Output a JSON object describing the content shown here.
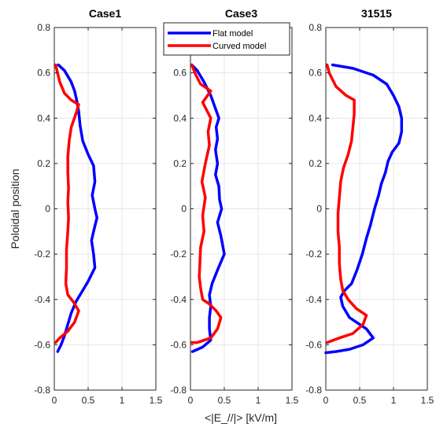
{
  "chart_data": {
    "type": "line",
    "xlabel": "<|E_//|> [kV/m]",
    "ylabel": "Poloidal position",
    "xlim": [
      0,
      1.5
    ],
    "ylim": [
      -0.8,
      0.8
    ],
    "xticks": [
      "0",
      "0.5",
      "1",
      "1.5"
    ],
    "yticks": [
      "-0.8",
      "-0.6",
      "-0.4",
      "-0.2",
      "0",
      "0.2",
      "0.4",
      "0.6",
      "0.8"
    ],
    "grid": true,
    "legend": {
      "placement": "top-center",
      "entries": [
        {
          "name": "Flat model",
          "color": "#0000ff"
        },
        {
          "name": "Curved model",
          "color": "#ff0000"
        }
      ]
    },
    "panels": [
      {
        "title": "Case1",
        "series": [
          {
            "name": "Flat model",
            "color": "#0000ff",
            "points": [
              [
                0.06,
                0.635
              ],
              [
                0.15,
                0.61
              ],
              [
                0.25,
                0.56
              ],
              [
                0.3,
                0.52
              ],
              [
                0.33,
                0.48
              ],
              [
                0.36,
                0.43
              ],
              [
                0.38,
                0.37
              ],
              [
                0.42,
                0.3
              ],
              [
                0.5,
                0.24
              ],
              [
                0.58,
                0.19
              ],
              [
                0.6,
                0.12
              ],
              [
                0.56,
                0.06
              ],
              [
                0.6,
                0.0
              ],
              [
                0.63,
                -0.04
              ],
              [
                0.58,
                -0.1
              ],
              [
                0.55,
                -0.14
              ],
              [
                0.58,
                -0.2
              ],
              [
                0.6,
                -0.26
              ],
              [
                0.5,
                -0.32
              ],
              [
                0.4,
                -0.37
              ],
              [
                0.32,
                -0.41
              ],
              [
                0.25,
                -0.46
              ],
              [
                0.2,
                -0.51
              ],
              [
                0.15,
                -0.56
              ],
              [
                0.1,
                -0.6
              ],
              [
                0.05,
                -0.63
              ]
            ]
          },
          {
            "name": "Curved model",
            "color": "#ff0000",
            "points": [
              [
                0.02,
                0.635
              ],
              [
                0.08,
                0.56
              ],
              [
                0.15,
                0.51
              ],
              [
                0.25,
                0.48
              ],
              [
                0.36,
                0.46
              ],
              [
                0.32,
                0.42
              ],
              [
                0.25,
                0.36
              ],
              [
                0.22,
                0.3
              ],
              [
                0.2,
                0.23
              ],
              [
                0.2,
                0.16
              ],
              [
                0.21,
                0.09
              ],
              [
                0.2,
                0.03
              ],
              [
                0.21,
                -0.04
              ],
              [
                0.2,
                -0.1
              ],
              [
                0.18,
                -0.18
              ],
              [
                0.18,
                -0.26
              ],
              [
                0.17,
                -0.33
              ],
              [
                0.2,
                -0.38
              ],
              [
                0.28,
                -0.41
              ],
              [
                0.36,
                -0.45
              ],
              [
                0.3,
                -0.5
              ],
              [
                0.2,
                -0.54
              ],
              [
                0.08,
                -0.57
              ],
              [
                0.02,
                -0.59
              ]
            ]
          }
        ]
      },
      {
        "title": "Case3",
        "series": [
          {
            "name": "Flat model",
            "color": "#0000ff",
            "points": [
              [
                0.02,
                0.635
              ],
              [
                0.1,
                0.61
              ],
              [
                0.2,
                0.56
              ],
              [
                0.3,
                0.5
              ],
              [
                0.36,
                0.45
              ],
              [
                0.42,
                0.4
              ],
              [
                0.38,
                0.36
              ],
              [
                0.4,
                0.31
              ],
              [
                0.37,
                0.26
              ],
              [
                0.4,
                0.2
              ],
              [
                0.37,
                0.15
              ],
              [
                0.42,
                0.1
              ],
              [
                0.43,
                0.04
              ],
              [
                0.46,
                0.0
              ],
              [
                0.4,
                -0.06
              ],
              [
                0.45,
                -0.12
              ],
              [
                0.5,
                -0.2
              ],
              [
                0.4,
                -0.27
              ],
              [
                0.32,
                -0.33
              ],
              [
                0.28,
                -0.38
              ],
              [
                0.3,
                -0.43
              ],
              [
                0.28,
                -0.48
              ],
              [
                0.28,
                -0.53
              ],
              [
                0.3,
                -0.58
              ],
              [
                0.18,
                -0.61
              ],
              [
                0.03,
                -0.63
              ]
            ]
          },
          {
            "name": "Curved model",
            "color": "#ff0000",
            "points": [
              [
                0.02,
                0.635
              ],
              [
                0.08,
                0.59
              ],
              [
                0.15,
                0.55
              ],
              [
                0.3,
                0.52
              ],
              [
                0.18,
                0.47
              ],
              [
                0.3,
                0.4
              ],
              [
                0.26,
                0.34
              ],
              [
                0.28,
                0.28
              ],
              [
                0.22,
                0.2
              ],
              [
                0.17,
                0.12
              ],
              [
                0.22,
                0.05
              ],
              [
                0.18,
                -0.03
              ],
              [
                0.2,
                -0.1
              ],
              [
                0.15,
                -0.17
              ],
              [
                0.14,
                -0.24
              ],
              [
                0.13,
                -0.3
              ],
              [
                0.15,
                -0.35
              ],
              [
                0.18,
                -0.4
              ],
              [
                0.28,
                -0.42
              ],
              [
                0.38,
                -0.45
              ],
              [
                0.45,
                -0.48
              ],
              [
                0.4,
                -0.53
              ],
              [
                0.3,
                -0.57
              ],
              [
                0.1,
                -0.59
              ],
              [
                0.02,
                -0.59
              ]
            ]
          }
        ]
      },
      {
        "title": "31515",
        "series": [
          {
            "name": "Flat model",
            "color": "#0000ff",
            "points": [
              [
                0.1,
                0.635
              ],
              [
                0.4,
                0.62
              ],
              [
                0.7,
                0.59
              ],
              [
                0.9,
                0.55
              ],
              [
                1.0,
                0.5
              ],
              [
                1.08,
                0.45
              ],
              [
                1.12,
                0.4
              ],
              [
                1.12,
                0.34
              ],
              [
                1.08,
                0.29
              ],
              [
                0.98,
                0.25
              ],
              [
                0.92,
                0.21
              ],
              [
                0.88,
                0.16
              ],
              [
                0.82,
                0.11
              ],
              [
                0.78,
                0.06
              ],
              [
                0.72,
                0.0
              ],
              [
                0.66,
                -0.07
              ],
              [
                0.6,
                -0.13
              ],
              [
                0.54,
                -0.2
              ],
              [
                0.46,
                -0.27
              ],
              [
                0.38,
                -0.33
              ],
              [
                0.28,
                -0.36
              ],
              [
                0.22,
                -0.39
              ],
              [
                0.25,
                -0.43
              ],
              [
                0.35,
                -0.48
              ],
              [
                0.6,
                -0.53
              ],
              [
                0.7,
                -0.57
              ],
              [
                0.55,
                -0.6
              ],
              [
                0.35,
                -0.62
              ],
              [
                0.15,
                -0.63
              ],
              [
                0.0,
                -0.635
              ]
            ]
          },
          {
            "name": "Curved model",
            "color": "#ff0000",
            "points": [
              [
                0.02,
                0.635
              ],
              [
                0.05,
                0.6
              ],
              [
                0.15,
                0.54
              ],
              [
                0.3,
                0.5
              ],
              [
                0.42,
                0.48
              ],
              [
                0.42,
                0.42
              ],
              [
                0.4,
                0.36
              ],
              [
                0.38,
                0.3
              ],
              [
                0.33,
                0.24
              ],
              [
                0.26,
                0.18
              ],
              [
                0.22,
                0.12
              ],
              [
                0.2,
                0.05
              ],
              [
                0.18,
                -0.02
              ],
              [
                0.18,
                -0.1
              ],
              [
                0.2,
                -0.17
              ],
              [
                0.2,
                -0.24
              ],
              [
                0.22,
                -0.31
              ],
              [
                0.25,
                -0.36
              ],
              [
                0.33,
                -0.4
              ],
              [
                0.45,
                -0.44
              ],
              [
                0.6,
                -0.47
              ],
              [
                0.55,
                -0.51
              ],
              [
                0.4,
                -0.55
              ],
              [
                0.2,
                -0.57
              ],
              [
                0.02,
                -0.59
              ]
            ]
          }
        ]
      }
    ]
  }
}
